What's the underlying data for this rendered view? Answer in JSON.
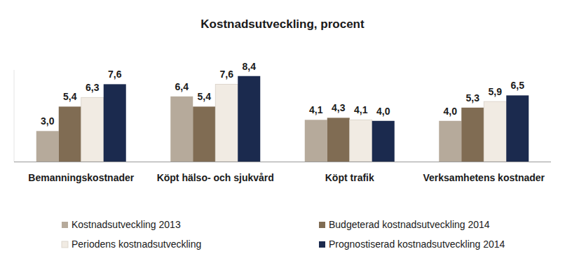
{
  "chart_data": {
    "type": "bar",
    "title": "Kostnadsutveckling, procent",
    "categories": [
      "Bemanningskostnader",
      "Köpt hälso- och sjukvård",
      "Köpt trafik",
      "Verksamhetens kostnader"
    ],
    "series": [
      {
        "name": "Kostnadsutveckling 2013",
        "color": "#b6aa9b",
        "values": [
          3.0,
          6.4,
          4.1,
          4.0
        ],
        "value_labels": [
          "3,0",
          "6,4",
          "4,1",
          "4,0"
        ]
      },
      {
        "name": "Budgeterad kostnadsutveckling 2014",
        "color": "#806c53",
        "values": [
          5.4,
          5.4,
          4.3,
          5.3
        ],
        "value_labels": [
          "5,4",
          "5,4",
          "4,3",
          "5,3"
        ]
      },
      {
        "name": "Periodens kostnadsutveckling",
        "color": "#f1ebe3",
        "values": [
          6.3,
          7.6,
          4.1,
          5.9
        ],
        "value_labels": [
          "6,3",
          "7,6",
          "4,1",
          "5,9"
        ]
      },
      {
        "name": "Prognostiserad kostnadsutveckling 2014",
        "color": "#1b2a4e",
        "values": [
          7.6,
          8.4,
          4.0,
          6.5
        ],
        "value_labels": [
          "7,6",
          "8,4",
          "4,0",
          "6,5"
        ]
      }
    ],
    "ylim": [
      0,
      9
    ],
    "tick_labels": false,
    "data_labels": true,
    "legend": "bottom",
    "grid": false
  }
}
